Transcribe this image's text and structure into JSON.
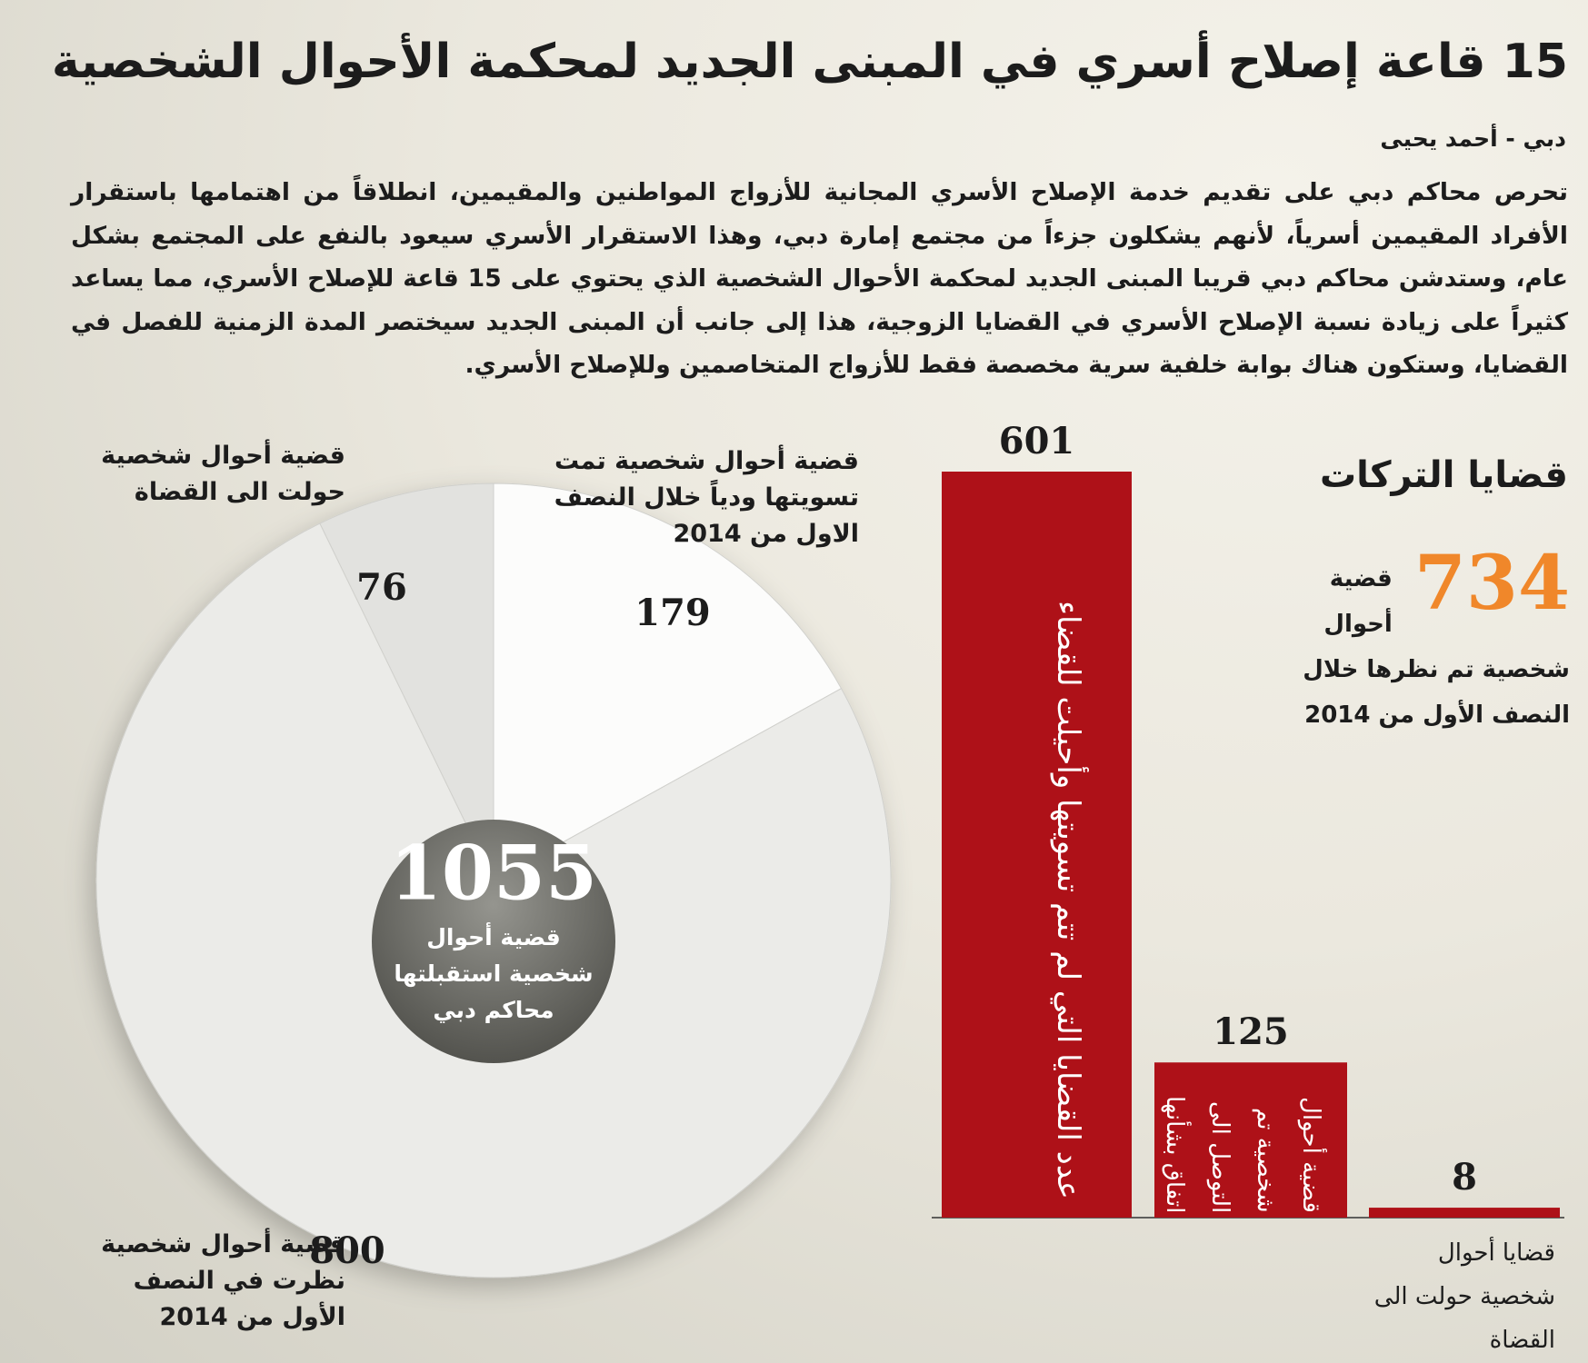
{
  "header": {
    "title": "15 قاعة إصلاح أسري في المبنى الجديد لمحكمة الأحوال الشخصية",
    "byline": "دبي - أحمد يحيى",
    "body": "تحرص محاكم دبي على تقديم خدمة الإصلاح الأسري المجانية للأزواج المواطنين والمقيمين، انطلاقاً من اهتمامها باستقرار الأفراد المقيمين أسرياً، لأنهم يشكلون جزءاً من مجتمع إمارة دبي، وهذا الاستقرار الأسري سيعود بالنفع على المجتمع بشكل عام، وستدشن محاكم دبي قريبا المبنى الجديد لمحكمة الأحوال الشخصية الذي يحتوي على 15 قاعة للإصلاح الأسري، مما يساعد كثيراً على زيادة نسبة الإصلاح الأسري في القضايا الزوجية، هذا إلى جانب أن المبنى الجديد سيختصر المدة الزمنية للفصل في القضايا، وستكون هناك بوابة خلفية سرية مخصصة فقط للأزواج المتخاصمين وللإصلاح الأسري."
  },
  "chart_data": [
    {
      "type": "pie",
      "categories": [
        "قضية أحوال شخصية تمت تسويتها ودياً خلال النصف الاول من 2014",
        "قضية أحوال شخصية نظرت في النصف الأول من 2014",
        "قضية أحوال شخصية حولت الى القضاة"
      ],
      "values": [
        179,
        800,
        76
      ],
      "colors": [
        "#fcfcfb",
        "#ebebe8",
        "#e2e2df"
      ],
      "center_value": 1055,
      "center_label": "قضية أحوال شخصية استقبلتها محاكم دبي"
    },
    {
      "type": "bar",
      "title": "قضايا التركات",
      "total_value": 734,
      "total_label": "قضية أحوال شخصية تم نظرها خلال النصف الأول من 2014",
      "categories": [
        "عدد القضايا التي لم تتم تسويتها وأحيلت للقضاء",
        "قضية أحوال شخصية تم التوصل الى اتفاق بشأنها",
        "قضايا أحوال شخصية حولت الى القضاة"
      ],
      "values": [
        601,
        125,
        8
      ],
      "color": "#ae1118"
    }
  ]
}
